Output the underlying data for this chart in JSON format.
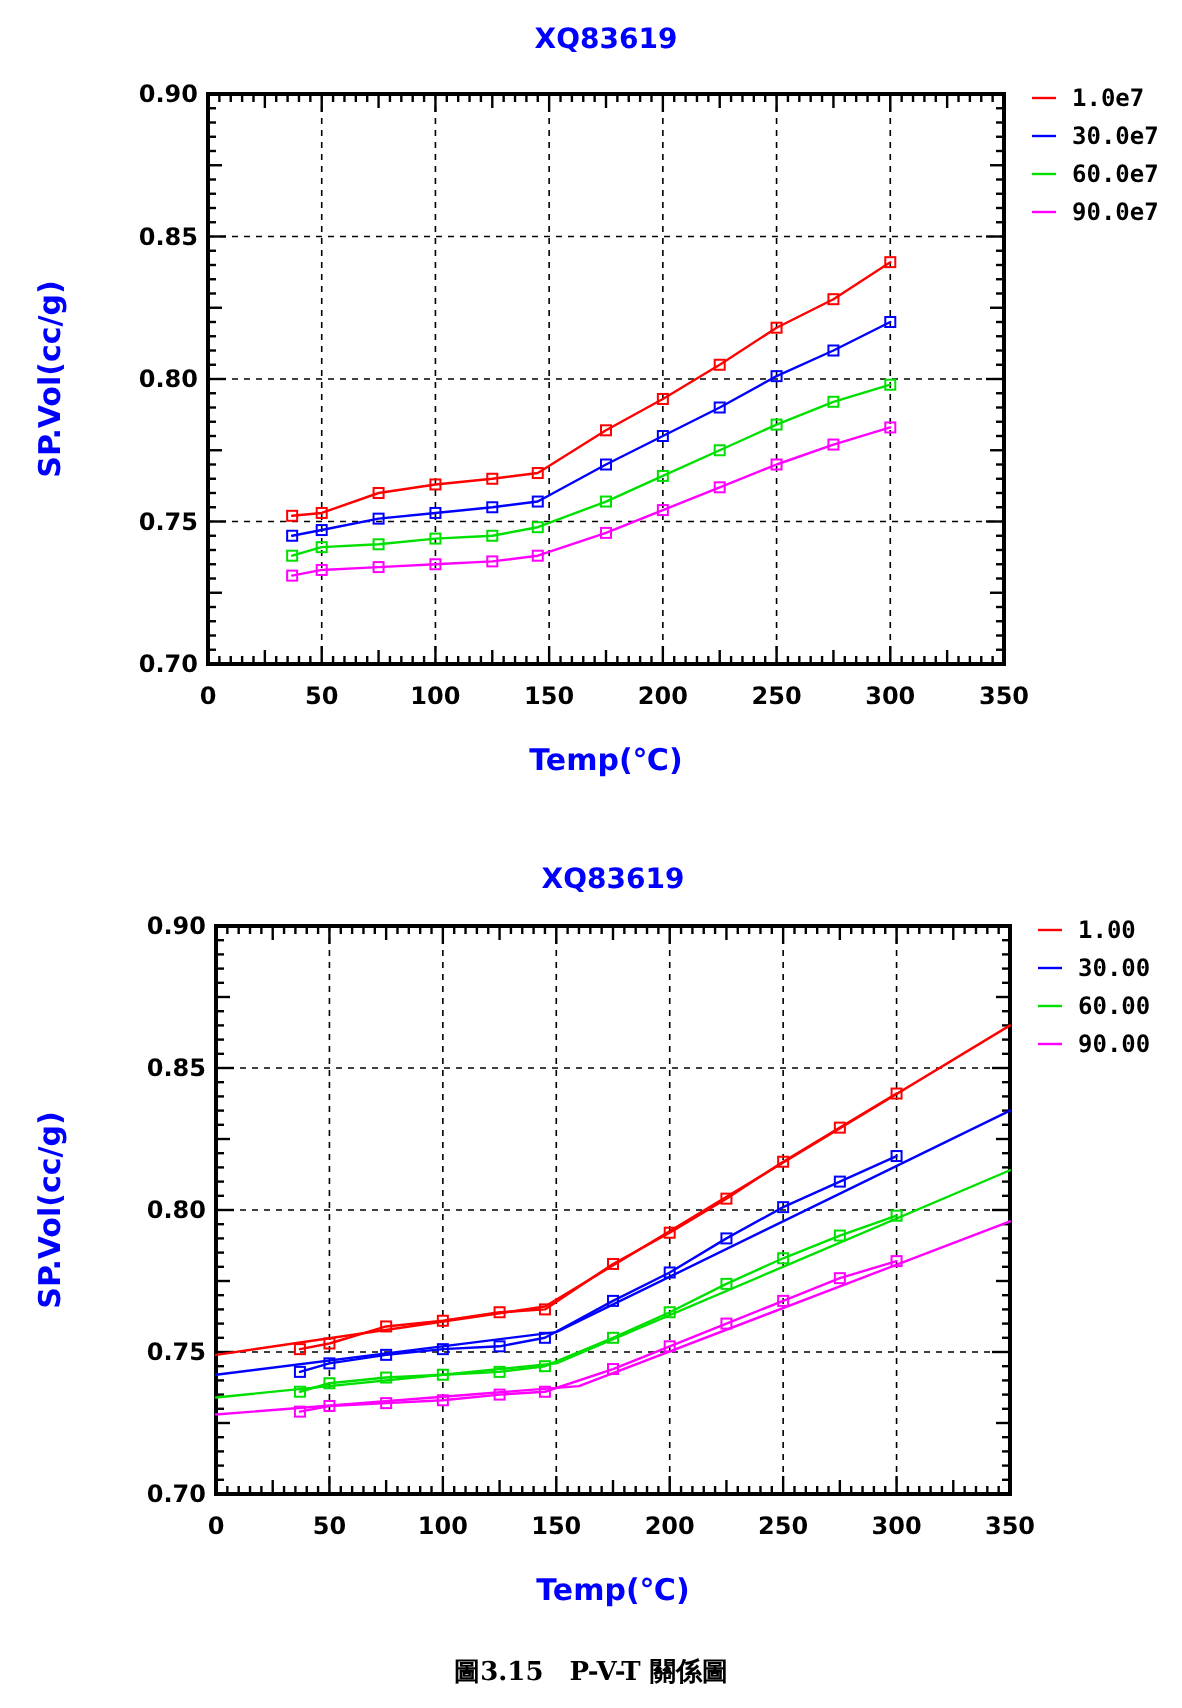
{
  "chart_data": [
    {
      "type": "line",
      "title": "XQ83619",
      "xlabel": "Temp(℃)",
      "ylabel": "SP.Vol(cc/g)",
      "xlim": [
        0,
        350
      ],
      "ylim": [
        0.7,
        0.9
      ],
      "xticks": [
        0,
        50,
        100,
        150,
        200,
        250,
        300,
        350
      ],
      "yticks": [
        {
          "value": 0.7,
          "label": "0.70"
        },
        {
          "value": 0.75,
          "label": "0.75"
        },
        {
          "value": 0.8,
          "label": "0.80"
        },
        {
          "value": 0.85,
          "label": "0.85"
        },
        {
          "value": 0.9,
          "label": "0.90"
        }
      ],
      "grid": true,
      "legend": "top right",
      "marker": "square",
      "line_style": "solid",
      "x": [
        37,
        50,
        75,
        100,
        125,
        145,
        175,
        200,
        225,
        250,
        275,
        300
      ],
      "series": [
        {
          "name": "1.0e7",
          "color": "#ff0000",
          "values": [
            0.752,
            0.753,
            0.76,
            0.763,
            0.765,
            0.767,
            0.782,
            0.793,
            0.805,
            0.818,
            0.828,
            0.841
          ]
        },
        {
          "name": "30.0e7",
          "color": "#0000ff",
          "values": [
            0.745,
            0.747,
            0.751,
            0.753,
            0.755,
            0.757,
            0.77,
            0.78,
            0.79,
            0.801,
            0.81,
            0.82
          ]
        },
        {
          "name": "60.0e7",
          "color": "#00e000",
          "values": [
            0.738,
            0.741,
            0.742,
            0.744,
            0.745,
            0.748,
            0.757,
            0.766,
            0.775,
            0.784,
            0.792,
            0.798
          ]
        },
        {
          "name": "90.0e7",
          "color": "#ff00ff",
          "values": [
            0.731,
            0.733,
            0.734,
            0.735,
            0.736,
            0.738,
            0.746,
            0.754,
            0.762,
            0.77,
            0.777,
            0.783
          ]
        }
      ]
    },
    {
      "type": "line",
      "title": "XQ83619",
      "xlabel": "Temp(℃)",
      "ylabel": "SP.Vol(cc/g)",
      "xlim": [
        0,
        350
      ],
      "ylim": [
        0.7,
        0.9
      ],
      "xticks": [
        0,
        50,
        100,
        150,
        200,
        250,
        300,
        350
      ],
      "yticks": [
        {
          "value": 0.7,
          "label": "0.70"
        },
        {
          "value": 0.75,
          "label": "0.75"
        },
        {
          "value": 0.8,
          "label": "0.80"
        },
        {
          "value": 0.85,
          "label": "0.85"
        },
        {
          "value": 0.9,
          "label": "0.90"
        }
      ],
      "grid": true,
      "legend": "top right",
      "marker": "square",
      "line_style": "solid",
      "x": [
        37,
        50,
        75,
        100,
        125,
        145,
        175,
        200,
        225,
        250,
        275,
        300
      ],
      "series": [
        {
          "name": "1.00",
          "color": "#ff0000",
          "values": [
            0.751,
            0.753,
            0.759,
            0.761,
            0.764,
            0.765,
            0.781,
            0.792,
            0.804,
            0.817,
            0.829,
            0.841
          ]
        },
        {
          "name": "30.00",
          "color": "#0000ff",
          "values": [
            0.743,
            0.746,
            0.749,
            0.751,
            0.752,
            0.755,
            0.768,
            0.778,
            0.79,
            0.801,
            0.81,
            0.819
          ]
        },
        {
          "name": "60.00",
          "color": "#00e000",
          "values": [
            0.736,
            0.739,
            0.741,
            0.742,
            0.743,
            0.745,
            0.755,
            0.764,
            0.774,
            0.783,
            0.791,
            0.798
          ]
        },
        {
          "name": "90.00",
          "color": "#ff00ff",
          "values": [
            0.729,
            0.731,
            0.732,
            0.733,
            0.735,
            0.736,
            0.744,
            0.752,
            0.76,
            0.768,
            0.776,
            0.782
          ]
        },
        {
          "type": "line",
          "marker": "none",
          "color": "#ff0000",
          "x": [
            0,
            145,
            350
          ],
          "values": [
            0.749,
            0.766,
            0.865
          ]
        },
        {
          "type": "line",
          "marker": "none",
          "color": "#0000ff",
          "x": [
            0,
            150,
            350
          ],
          "values": [
            0.742,
            0.757,
            0.835
          ]
        },
        {
          "type": "line",
          "marker": "none",
          "color": "#00e000",
          "x": [
            0,
            150,
            350
          ],
          "values": [
            0.734,
            0.746,
            0.814
          ]
        },
        {
          "type": "line",
          "marker": "none",
          "color": "#ff00ff",
          "x": [
            0,
            160,
            350
          ],
          "values": [
            0.728,
            0.738,
            0.796
          ]
        }
      ],
      "annotations": [
        "圖3.15　P-V-T 關係圖"
      ]
    }
  ]
}
